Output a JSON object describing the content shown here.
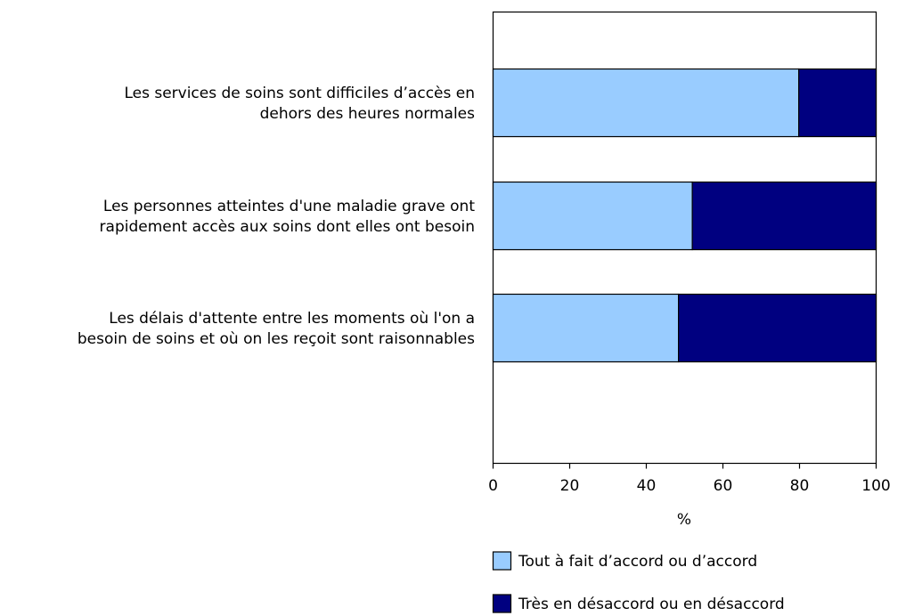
{
  "chart_data": {
    "type": "bar",
    "orientation": "horizontal",
    "stacked": true,
    "title": "",
    "xlabel": "%",
    "ylabel": "",
    "xlim": [
      0,
      100
    ],
    "xticks": [
      0,
      20,
      40,
      60,
      80,
      100
    ],
    "grid": false,
    "legend_position": "bottom",
    "categories": [
      [
        "Les services de soins sont difficiles d’accès en",
        "dehors des heures normales"
      ],
      [
        "Les personnes atteintes d'une maladie grave ont",
        "rapidement accès aux soins dont elles ont besoin"
      ],
      [
        "Les délais d'attente entre les moments où l'on a",
        "besoin de soins et où on les reçoit sont raisonnables"
      ]
    ],
    "series": [
      {
        "name": "Tout à fait d’accord ou d’accord",
        "color": "#99CCFF",
        "values": [
          79.8,
          52.0,
          48.4
        ]
      },
      {
        "name": "Très en désaccord ou en désaccord",
        "color": "#000080",
        "values": [
          20.2,
          48.0,
          51.6
        ]
      }
    ]
  }
}
